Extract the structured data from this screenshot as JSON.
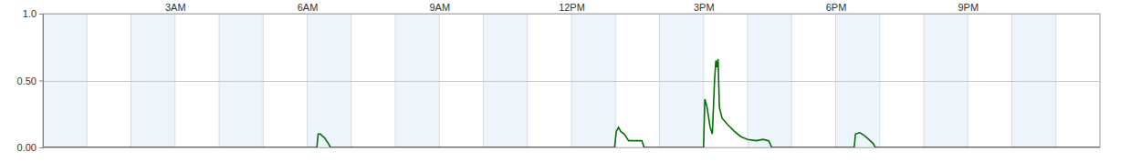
{
  "chart_data": {
    "type": "line",
    "x": [
      0,
      6.22,
      6.25,
      6.3,
      6.4,
      6.48,
      6.53,
      12.98,
      13.02,
      13.07,
      13.12,
      13.2,
      13.3,
      13.6,
      13.65,
      15.0,
      15.03,
      15.08,
      15.15,
      15.2,
      15.25,
      15.28,
      15.3,
      15.33,
      15.36,
      15.42,
      15.55,
      15.7,
      15.85,
      16.0,
      16.2,
      16.35,
      16.48,
      16.55,
      18.42,
      18.45,
      18.55,
      18.65,
      18.75,
      18.85,
      18.9,
      24
    ],
    "values": [
      0,
      0,
      0.1,
      0.1,
      0.07,
      0.03,
      0,
      0,
      0.12,
      0.15,
      0.12,
      0.1,
      0.05,
      0.05,
      0,
      0,
      0.36,
      0.3,
      0.15,
      0.1,
      0.5,
      0.65,
      0.6,
      0.66,
      0.3,
      0.22,
      0.17,
      0.12,
      0.08,
      0.06,
      0.05,
      0.06,
      0.05,
      0,
      0,
      0.1,
      0.11,
      0.09,
      0.06,
      0.03,
      0,
      0
    ],
    "color": "#007000",
    "xlim": [
      0,
      24
    ],
    "xticks": [
      {
        "value": 3,
        "label": "3AM"
      },
      {
        "value": 6,
        "label": "6AM"
      },
      {
        "value": 9,
        "label": "9AM"
      },
      {
        "value": 12,
        "label": "12PM"
      },
      {
        "value": 15,
        "label": "3PM"
      },
      {
        "value": 18,
        "label": "6PM"
      },
      {
        "value": 21,
        "label": "9PM"
      }
    ],
    "ylim": [
      0,
      1
    ],
    "yticks": [
      {
        "value": 0,
        "label": "0.00"
      },
      {
        "value": 0.5,
        "label": "0.50"
      },
      {
        "value": 1,
        "label": "1.0"
      }
    ],
    "grid": true
  }
}
